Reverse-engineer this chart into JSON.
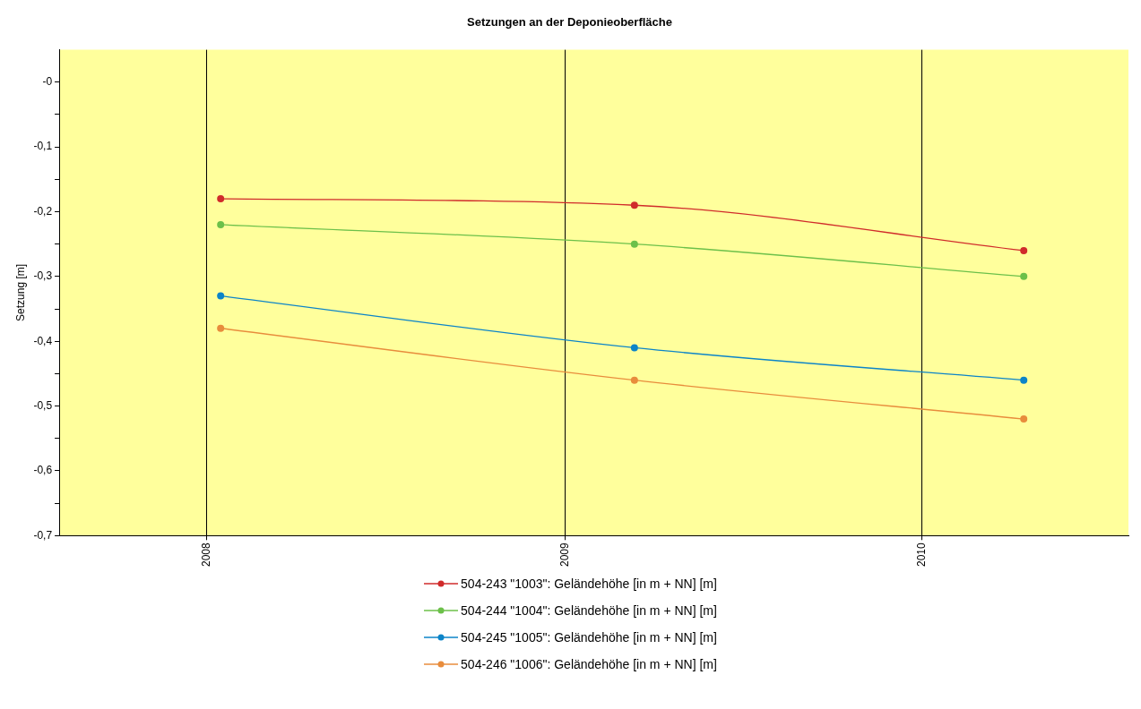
{
  "chart_data": {
    "type": "line",
    "title": "Setzungen an der Deponieoberfläche",
    "ylabel": "Setzung [m]",
    "x": [
      "2008-01-15",
      "2009-03-13",
      "2010-04-15"
    ],
    "xlim": [
      "2007-08-03",
      "2010-07-31"
    ],
    "xticks": [
      "2008",
      "2009",
      "2010"
    ],
    "ylim": [
      -0.7,
      0.05
    ],
    "yticks": [
      {
        "value": 0,
        "label": "-0"
      },
      {
        "value": -0.05,
        "label": null
      },
      {
        "value": -0.1,
        "label": "-0,1"
      },
      {
        "value": -0.15,
        "label": null
      },
      {
        "value": -0.2,
        "label": "-0,2"
      },
      {
        "value": -0.25,
        "label": null
      },
      {
        "value": -0.3,
        "label": "-0,3"
      },
      {
        "value": -0.35,
        "label": null
      },
      {
        "value": -0.4,
        "label": "-0,4"
      },
      {
        "value": -0.45,
        "label": null
      },
      {
        "value": -0.5,
        "label": "-0,5"
      },
      {
        "value": -0.55,
        "label": null
      },
      {
        "value": -0.6,
        "label": "-0,6"
      },
      {
        "value": -0.65,
        "label": null
      },
      {
        "value": -0.7,
        "label": "-0,7"
      }
    ],
    "series": [
      {
        "name": "504-243 \"1003\": Geländehöhe [in m + NN] [m]",
        "color": "#d02b2b",
        "values": [
          -0.18,
          -0.19,
          -0.26
        ]
      },
      {
        "name": "504-244 \"1004\": Geländehöhe [in m + NN] [m]",
        "color": "#6cc04a",
        "values": [
          -0.22,
          -0.25,
          -0.3
        ]
      },
      {
        "name": "504-245 \"1005\": Geländehöhe [in m + NN] [m]",
        "color": "#0c84c8",
        "values": [
          -0.33,
          -0.41,
          -0.46
        ]
      },
      {
        "name": "504-246 \"1006\": Geländehöhe [in m + NN] [m]",
        "color": "#e88c3c",
        "values": [
          -0.38,
          -0.46,
          -0.52
        ]
      }
    ],
    "grid": "x",
    "legend": "bottom",
    "marker": "circle",
    "line_style": "solid"
  }
}
